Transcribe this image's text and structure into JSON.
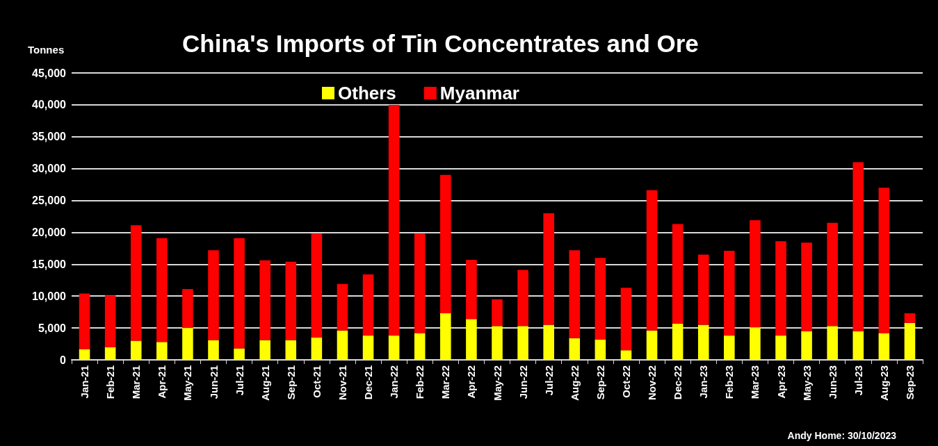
{
  "chart_data": {
    "type": "bar",
    "title": "China's Imports of Tin Concentrates and Ore",
    "ylabel": "Tonnes",
    "categories": [
      "Jan-21",
      "Feb-21",
      "Mar-21",
      "Apr-21",
      "May-21",
      "Jun-21",
      "Jul-21",
      "Aug-21",
      "Sep-21",
      "Oct-21",
      "Nov-21",
      "Dec-21",
      "Jan-22",
      "Feb-22",
      "Mar-22",
      "Apr-22",
      "May-22",
      "Jun-22",
      "Jul-22",
      "Aug-22",
      "Sep-22",
      "Oct-22",
      "Nov-22",
      "Dec-22",
      "Jan-23",
      "Feb-23",
      "Mar-23",
      "Apr-23",
      "May-23",
      "Jun-23",
      "Jul-23",
      "Aug-23",
      "Sep-23"
    ],
    "stacked": true,
    "series": [
      {
        "name": "Others",
        "color": "#ffff00",
        "values": [
          1700,
          2000,
          3000,
          2800,
          5000,
          3100,
          1800,
          3100,
          3100,
          3500,
          4600,
          3800,
          3800,
          4200,
          7300,
          6400,
          5300,
          5300,
          5500,
          3400,
          3200,
          1500,
          4600,
          5700,
          5500,
          3800,
          5100,
          3800,
          4500,
          5300,
          4500,
          4200,
          5800
        ]
      },
      {
        "name": "Myanmar",
        "color": "#ff0000",
        "values": [
          8700,
          8100,
          18100,
          16300,
          6100,
          14100,
          17300,
          12500,
          12300,
          16300,
          7300,
          9600,
          36200,
          15600,
          21700,
          9300,
          4200,
          8800,
          17500,
          13800,
          12800,
          9800,
          22000,
          15600,
          11000,
          13300,
          16800,
          14800,
          13900,
          16200,
          26500,
          22800,
          1500
        ]
      }
    ],
    "ylim": [
      0,
      45000
    ],
    "yticks": [
      0,
      {
        "value": 5000,
        "label": "5,000"
      },
      {
        "value": 10000,
        "label": "10,000"
      },
      {
        "value": 15000,
        "label": "15,000"
      },
      {
        "value": 20000,
        "label": "20,000"
      },
      {
        "value": 25000,
        "label": "25,000"
      },
      {
        "value": 30000,
        "label": "30,000"
      },
      {
        "value": 35000,
        "label": "35,000"
      },
      {
        "value": 40000,
        "label": "40,000"
      },
      {
        "value": 45000,
        "label": "45,000"
      }
    ],
    "grid": "y",
    "legend": "top",
    "annotations": [
      "Andy Home: 30/10/2023"
    ]
  }
}
